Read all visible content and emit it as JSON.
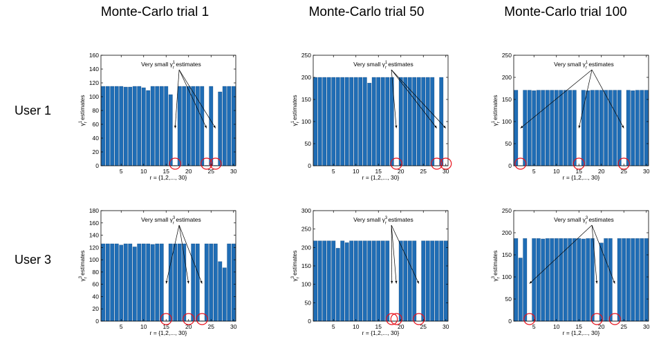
{
  "column_titles": [
    "Monte-Carlo trial 1",
    "Monte-Carlo trial 50",
    "Monte-Carlo trial 100"
  ],
  "row_labels": [
    "User 1",
    "User 3"
  ],
  "colors": {
    "bar": "#1f6db5",
    "circle": "#e8101a",
    "axis": "#000000"
  },
  "chart_data": [
    {
      "type": "bar",
      "id": "u1-t1",
      "xlabel": "r = {1,2,..., 30}",
      "ylabel": "γr1 estimates",
      "ylim": [
        0,
        160
      ],
      "yticks": [
        0,
        20,
        40,
        60,
        80,
        100,
        120,
        140,
        160
      ],
      "xlim": [
        0.5,
        30.5
      ],
      "xticks": [
        5,
        10,
        15,
        20,
        25,
        30
      ],
      "values": [
        115,
        115,
        115,
        115,
        115,
        114,
        114,
        115,
        115,
        113,
        109,
        115,
        115,
        115,
        115,
        103,
        0.5,
        115,
        115,
        115,
        115,
        115,
        115,
        0.5,
        115,
        0.5,
        107,
        115,
        115,
        115
      ],
      "annotation": {
        "text": "Very small γr1 estimates",
        "targets": [
          17,
          24,
          26
        ]
      },
      "circled": [
        17,
        24,
        26
      ]
    },
    {
      "type": "bar",
      "id": "u1-t50",
      "xlabel": "r = {1,2,..., 30}",
      "ylabel": "γr1 estimates",
      "ylim": [
        0,
        250
      ],
      "yticks": [
        0,
        50,
        100,
        150,
        200,
        250
      ],
      "xlim": [
        0.5,
        30.5
      ],
      "xticks": [
        5,
        10,
        15,
        20,
        25,
        30
      ],
      "values": [
        200,
        200,
        200,
        200,
        200,
        200,
        200,
        200,
        200,
        200,
        200,
        200,
        187,
        200,
        200,
        200,
        200,
        200,
        0.5,
        200,
        200,
        200,
        200,
        200,
        200,
        200,
        200,
        0.5,
        200,
        0.5
      ],
      "annotation": {
        "text": "Very small γr1 estimates",
        "targets": [
          19,
          28,
          30
        ]
      },
      "circled": [
        19,
        28,
        30
      ]
    },
    {
      "type": "bar",
      "id": "u1-t100",
      "xlabel": "r = {1,2,..., 30}",
      "ylabel": "γr1 estimates",
      "ylim": [
        0,
        250
      ],
      "yticks": [
        0,
        50,
        100,
        150,
        200,
        250
      ],
      "xlim": [
        0.5,
        30.5
      ],
      "xticks": [
        5,
        10,
        15,
        20,
        25,
        30
      ],
      "values": [
        171,
        0.5,
        171,
        171,
        170,
        171,
        171,
        171,
        171,
        171,
        171,
        171,
        171,
        171,
        0.5,
        171,
        170,
        171,
        171,
        171,
        171,
        171,
        171,
        171,
        0.5,
        171,
        170,
        171,
        171,
        171
      ],
      "annotation": {
        "text": "Very small γr1 estimates",
        "targets": [
          2,
          15,
          25
        ]
      },
      "circled": [
        2,
        15,
        25
      ]
    },
    {
      "type": "bar",
      "id": "u3-t1",
      "xlabel": "r = {1,2,..., 30}",
      "ylabel": "γr3 estimates",
      "ylim": [
        0,
        180
      ],
      "yticks": [
        0,
        20,
        40,
        60,
        80,
        100,
        120,
        140,
        160,
        180
      ],
      "xlim": [
        0.5,
        30.5
      ],
      "xticks": [
        5,
        10,
        15,
        20,
        25,
        30
      ],
      "values": [
        126,
        126,
        126,
        126,
        124,
        126,
        126,
        121,
        126,
        126,
        126,
        125,
        126,
        126,
        0.5,
        126,
        126,
        126,
        126,
        0.5,
        126,
        126,
        0.5,
        126,
        126,
        126,
        97,
        87,
        126,
        126
      ],
      "annotation": {
        "text": "Very small γr3 estimates",
        "targets": [
          15,
          20,
          23
        ]
      },
      "circled": [
        15,
        20,
        23
      ]
    },
    {
      "type": "bar",
      "id": "u3-t50",
      "xlabel": "r = {1,2,..., 30}",
      "ylabel": "γr3 estimates",
      "ylim": [
        0,
        300
      ],
      "yticks": [
        0,
        50,
        100,
        150,
        200,
        250,
        300
      ],
      "xlim": [
        0.5,
        30.5
      ],
      "xticks": [
        5,
        10,
        15,
        20,
        25,
        30
      ],
      "values": [
        218,
        218,
        218,
        218,
        218,
        198,
        218,
        213,
        218,
        218,
        218,
        218,
        218,
        218,
        218,
        218,
        218,
        0.5,
        0.5,
        218,
        218,
        218,
        218,
        0.5,
        218,
        218,
        218,
        218,
        218,
        218
      ],
      "annotation": {
        "text": "Very small γr3 estimates",
        "targets": [
          18,
          19,
          24
        ]
      },
      "circled": [
        18,
        19,
        24
      ]
    },
    {
      "type": "bar",
      "id": "u3-t100",
      "xlabel": "r = {1,2,..., 30}",
      "ylabel": "γr3 estimates",
      "ylim": [
        0,
        250
      ],
      "yticks": [
        0,
        50,
        100,
        150,
        200,
        250
      ],
      "xlim": [
        0.5,
        30.5
      ],
      "xticks": [
        5,
        10,
        15,
        20,
        25,
        30
      ],
      "values": [
        187,
        143,
        187,
        0.5,
        187,
        187,
        186,
        187,
        187,
        187,
        187,
        187,
        187,
        187,
        187,
        186,
        187,
        187,
        0.5,
        177,
        187,
        187,
        0.5,
        187,
        187,
        187,
        187,
        187,
        187,
        187
      ],
      "annotation": {
        "text": "Very small γr3 estimates",
        "targets": [
          4,
          19,
          23
        ]
      },
      "circled": [
        4,
        19,
        23
      ]
    }
  ]
}
